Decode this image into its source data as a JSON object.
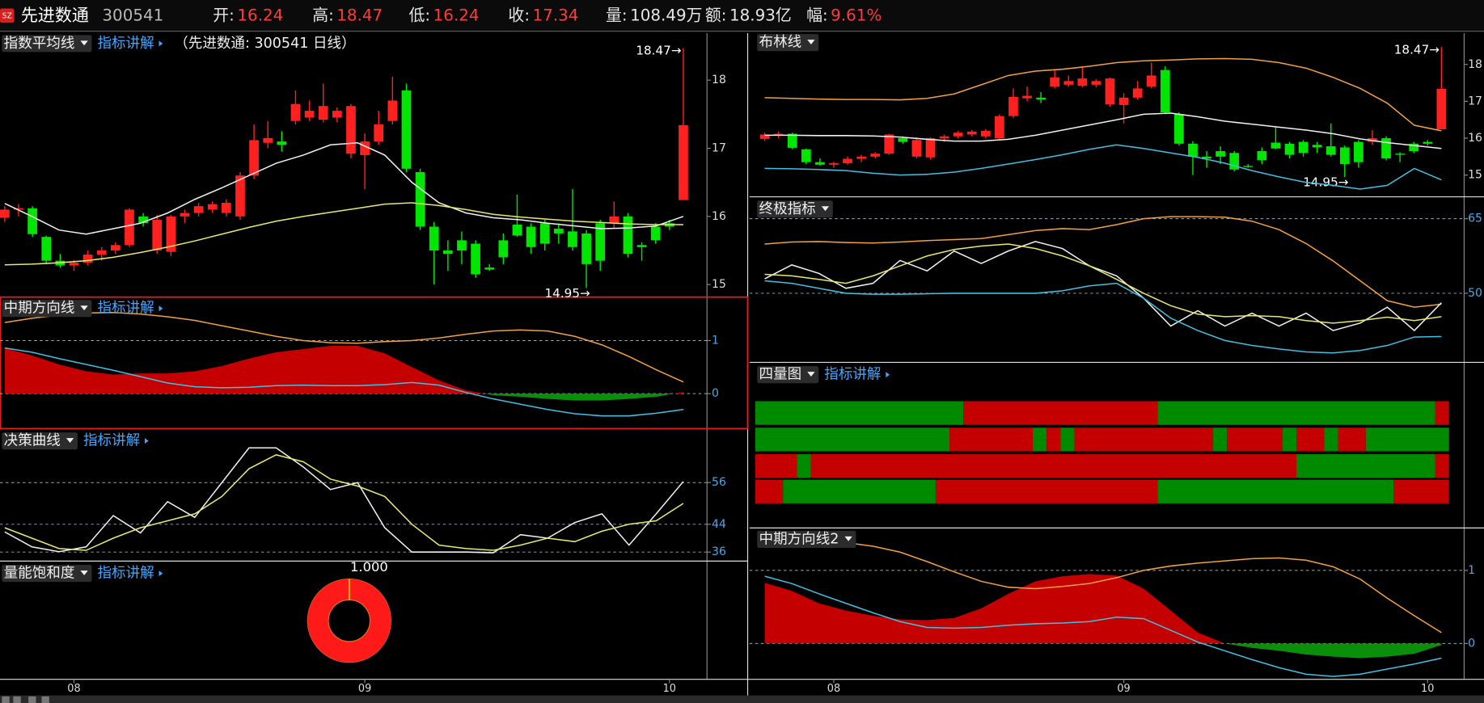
{
  "header": {
    "market": "SZ",
    "name": "先进数通",
    "code": "300541",
    "fields": [
      {
        "label": "开:",
        "value": "16.24",
        "color": "#ff3b3b"
      },
      {
        "label": "高:",
        "value": "18.47",
        "color": "#ff3b3b"
      },
      {
        "label": "低:",
        "value": "16.24",
        "color": "#ff3b3b"
      },
      {
        "label": "收:",
        "value": "17.34",
        "color": "#ff3b3b"
      },
      {
        "label": "量:",
        "value": "108.49万",
        "color": "#e6e6e6"
      },
      {
        "label": "额:",
        "value": "18.93亿",
        "color": "#e6e6e6"
      },
      {
        "label": "幅:",
        "value": "9.61%",
        "color": "#ff3b3b"
      }
    ]
  },
  "dates": [
    null,
    null,
    null,
    null,
    null,
    "08",
    null,
    null,
    null,
    null,
    null,
    null,
    null,
    null,
    null,
    null,
    null,
    null,
    null,
    null,
    null,
    null,
    null,
    null,
    null,
    null,
    "09",
    null,
    null,
    null,
    null,
    null,
    null,
    null,
    null,
    null,
    null,
    null,
    null,
    null,
    null,
    null,
    null,
    null,
    null,
    null,
    null,
    null,
    "10",
    null
  ],
  "candles": {
    "up_color": "#ff2020",
    "down_color": "#00e600",
    "open": [
      15.98,
      16.1,
      16.12,
      15.7,
      15.35,
      15.28,
      15.32,
      15.44,
      15.5,
      15.58,
      16.0,
      15.5,
      15.48,
      16.0,
      16.05,
      16.1,
      16.05,
      16.0,
      16.6,
      17.08,
      17.1,
      17.4,
      17.45,
      17.42,
      17.45,
      16.92,
      16.9,
      17.1,
      17.4,
      17.85,
      16.65,
      15.85,
      15.5,
      15.65,
      15.6,
      15.25,
      15.65,
      15.88,
      15.85,
      15.9,
      15.82,
      15.78,
      15.75,
      15.9,
      15.9,
      16.0,
      15.58,
      15.85,
      15.9,
      16.24
    ],
    "high": [
      16.15,
      16.18,
      16.15,
      15.72,
      15.45,
      15.36,
      15.5,
      15.55,
      15.62,
      16.12,
      16.05,
      16.02,
      16.02,
      16.1,
      16.2,
      16.22,
      16.25,
      16.65,
      17.35,
      17.4,
      17.25,
      17.85,
      17.7,
      17.95,
      17.6,
      17.65,
      17.22,
      17.55,
      18.05,
      17.95,
      16.7,
      15.92,
      15.65,
      15.78,
      15.65,
      15.3,
      15.75,
      16.32,
      15.9,
      15.95,
      15.9,
      16.4,
      15.8,
      15.95,
      16.22,
      16.05,
      15.62,
      15.9,
      15.95,
      18.47
    ],
    "low": [
      15.92,
      16.0,
      15.7,
      15.3,
      15.25,
      15.2,
      15.28,
      15.35,
      15.45,
      15.55,
      15.85,
      15.45,
      15.42,
      15.9,
      16.0,
      16.05,
      16.0,
      15.95,
      16.55,
      17.0,
      16.95,
      17.35,
      17.4,
      17.38,
      17.38,
      16.85,
      16.4,
      17.05,
      17.35,
      16.65,
      15.8,
      15.0,
      15.2,
      15.3,
      15.1,
      15.2,
      15.3,
      15.7,
      15.45,
      15.5,
      15.6,
      15.5,
      14.95,
      15.2,
      15.82,
      15.4,
      15.35,
      15.6,
      15.8,
      16.24
    ],
    "close": [
      16.1,
      16.12,
      15.74,
      15.35,
      15.28,
      15.32,
      15.44,
      15.5,
      15.58,
      16.1,
      15.9,
      15.95,
      16.0,
      16.05,
      16.15,
      16.18,
      16.2,
      16.6,
      17.12,
      17.15,
      17.05,
      17.65,
      17.55,
      17.62,
      17.55,
      17.62,
      17.1,
      17.35,
      17.7,
      16.7,
      15.85,
      15.5,
      15.45,
      15.5,
      15.15,
      15.22,
      15.4,
      15.72,
      15.55,
      15.6,
      15.75,
      15.55,
      15.3,
      15.35,
      16.0,
      15.45,
      15.55,
      15.65,
      15.85,
      17.34
    ]
  },
  "panels": {
    "ema": {
      "title": "指数平均线",
      "help": "指标讲解",
      "subtitle": "（先进数通: 300541 日线）",
      "ylim": [
        14.83,
        18.69
      ],
      "yticks": [
        15,
        16,
        17,
        18
      ],
      "grid": false,
      "candles": true,
      "high_label": "18.47→",
      "low_label": "14.95→",
      "series": [
        {
          "color": "#f0f0f0",
          "values": [
            16.19,
            16.0,
            15.8,
            15.74,
            15.82,
            15.9,
            16.05,
            16.25,
            16.42,
            16.6,
            16.78,
            16.9,
            17.05,
            17.08,
            16.9,
            16.5,
            16.2,
            16.05,
            15.98,
            15.95,
            15.9,
            15.86,
            15.82,
            15.83,
            15.86,
            16.0
          ]
        },
        {
          "color": "#e8e86a",
          "values": [
            15.29,
            15.3,
            15.32,
            15.35,
            15.4,
            15.47,
            15.55,
            15.64,
            15.74,
            15.84,
            15.93,
            16.0,
            16.06,
            16.12,
            16.18,
            16.2,
            16.16,
            16.1,
            16.03,
            15.99,
            15.96,
            15.93,
            15.91,
            15.89,
            15.88,
            15.88
          ]
        }
      ]
    },
    "mid": {
      "title": "中期方向线",
      "help": "指标讲解",
      "ylim": [
        -0.66,
        1.82
      ],
      "yticks": [
        0,
        1
      ],
      "grid": true,
      "area": {
        "up_color": "#c40000",
        "down_color": "#0a8f0a",
        "values": [
          0.86,
          0.72,
          0.55,
          0.42,
          0.36,
          0.38,
          0.38,
          0.42,
          0.52,
          0.66,
          0.78,
          0.84,
          0.9,
          0.9,
          0.76,
          0.5,
          0.25,
          0.06,
          -0.03,
          -0.06,
          -0.1,
          -0.13,
          -0.13,
          -0.1,
          -0.06,
          0.03
        ]
      },
      "series": [
        {
          "color": "#f0a040",
          "values": [
            1.34,
            1.42,
            1.48,
            1.52,
            1.53,
            1.5,
            1.45,
            1.38,
            1.28,
            1.18,
            1.08,
            1.0,
            0.96,
            0.95,
            0.98,
            1.0,
            1.05,
            1.12,
            1.18,
            1.2,
            1.18,
            1.08,
            0.92,
            0.7,
            0.45,
            0.22
          ]
        },
        {
          "color": "#40c0e0",
          "values": [
            0.86,
            0.78,
            0.66,
            0.55,
            0.44,
            0.32,
            0.2,
            0.13,
            0.11,
            0.12,
            0.15,
            0.16,
            0.15,
            0.15,
            0.17,
            0.21,
            0.16,
            0.02,
            -0.1,
            -0.2,
            -0.3,
            -0.38,
            -0.42,
            -0.42,
            -0.37,
            -0.3
          ]
        }
      ]
    },
    "decision": {
      "title": "决策曲线",
      "help": "指标讲解",
      "ylim": [
        33.4,
        71
      ],
      "yticks": [
        36,
        44,
        56
      ],
      "grid": true,
      "series": [
        {
          "color": "#f0f0f0",
          "values": [
            41.8,
            37.5,
            36.1,
            37.5,
            46.5,
            41.5,
            50.5,
            46,
            56,
            66,
            66,
            60.5,
            54,
            56,
            43,
            36,
            36,
            36,
            35.8,
            41,
            40,
            44.5,
            47,
            38,
            47,
            56.3
          ]
        },
        {
          "color": "#e8e86a",
          "values": [
            43,
            40,
            37,
            36.5,
            40,
            43,
            45,
            47,
            52,
            60,
            64,
            62,
            57,
            55,
            52,
            44,
            38,
            37,
            36.5,
            38,
            40,
            39,
            42,
            44,
            45,
            50
          ]
        }
      ]
    },
    "volume": {
      "title": "量能饱和度",
      "help": "指标讲解",
      "value": 1,
      "value_label": "1.000",
      "color": "#ff1a1a"
    },
    "boll": {
      "title": "布林线",
      "ylim": [
        14.41,
        18.85
      ],
      "yticks": [
        15,
        16,
        17,
        18
      ],
      "grid": false,
      "candles": true,
      "high_label": "18.47→",
      "low_label": "14.95→",
      "series": [
        {
          "color": "#f0a040",
          "values": [
            17.1,
            17.08,
            17.06,
            17.05,
            17.05,
            17.04,
            17.08,
            17.2,
            17.45,
            17.7,
            17.82,
            17.87,
            17.95,
            18.05,
            18.1,
            18.12,
            18.15,
            18.16,
            18.14,
            18.05,
            17.9,
            17.65,
            17.35,
            16.95,
            16.35,
            16.2
          ]
        },
        {
          "color": "#f0f0f0",
          "values": [
            16.08,
            16.08,
            16.07,
            16.07,
            16.06,
            16.03,
            15.97,
            15.92,
            15.92,
            15.97,
            16.08,
            16.22,
            16.36,
            16.5,
            16.65,
            16.68,
            16.58,
            16.46,
            16.38,
            16.3,
            16.22,
            16.12,
            15.98,
            15.88,
            15.8,
            15.72
          ]
        },
        {
          "color": "#40c0e0",
          "values": [
            15.18,
            15.17,
            15.15,
            15.12,
            15.05,
            15.0,
            15.02,
            15.08,
            15.18,
            15.3,
            15.42,
            15.55,
            15.7,
            15.82,
            15.72,
            15.6,
            15.48,
            15.32,
            15.12,
            14.95,
            14.8,
            14.72,
            14.62,
            14.72,
            15.18,
            14.87
          ]
        }
      ]
    },
    "ultimate": {
      "title": "终极指标",
      "ylim": [
        36.1,
        69.4
      ],
      "yticks": [
        50,
        65
      ],
      "grid": true,
      "series": [
        {
          "color": "#f0a040",
          "values": [
            59.9,
            60.3,
            60.4,
            60.2,
            60.1,
            60.3,
            60.6,
            60.8,
            61,
            61.8,
            62.6,
            63,
            62.8,
            63.8,
            65,
            65.4,
            65.4,
            65.3,
            64.5,
            62.8,
            60,
            56.5,
            52.5,
            48.5,
            47.2,
            47.8
          ]
        },
        {
          "color": "#f0f0f0",
          "values": [
            52.9,
            55.7,
            54,
            51,
            52,
            56.6,
            54.5,
            58.5,
            56,
            58.5,
            60.4,
            59,
            55.5,
            53.5,
            49,
            43.4,
            46.5,
            43.4,
            46,
            43.4,
            46,
            42.5,
            44,
            47.2,
            42.5,
            48.1
          ]
        },
        {
          "color": "#e8e86a",
          "values": [
            53.8,
            53.5,
            52.8,
            52,
            53.5,
            55.5,
            57.5,
            58.8,
            59.5,
            59.9,
            59,
            57.5,
            55.5,
            52.8,
            50,
            47.5,
            45.8,
            45.3,
            45.5,
            45.3,
            44.5,
            44,
            44.5,
            45.2,
            44.5,
            45.3
          ]
        },
        {
          "color": "#40c0e0",
          "values": [
            52.5,
            52,
            51,
            50,
            49.8,
            49.8,
            49.9,
            50,
            50,
            50,
            50,
            50.5,
            51.5,
            52,
            49,
            45,
            42.5,
            40.5,
            39.5,
            38.8,
            38.2,
            38,
            38.5,
            39.5,
            41.2,
            41.3
          ]
        }
      ]
    },
    "quad": {
      "title": "四量图",
      "help": "指标讲解",
      "up_color": "#c40000",
      "down_color": "#008a00",
      "rows": [
        [
          {
            "state": "down",
            "days": 15
          },
          {
            "state": "up",
            "days": 14
          },
          {
            "state": "down",
            "days": 20
          },
          {
            "state": "up",
            "days": 1
          }
        ],
        [
          {
            "state": "down",
            "days": 14
          },
          {
            "state": "up",
            "days": 6
          },
          {
            "state": "down",
            "days": 1
          },
          {
            "state": "up",
            "days": 1
          },
          {
            "state": "down",
            "days": 1
          },
          {
            "state": "up",
            "days": 10
          },
          {
            "state": "down",
            "days": 1
          },
          {
            "state": "up",
            "days": 4
          },
          {
            "state": "down",
            "days": 1
          },
          {
            "state": "up",
            "days": 2
          },
          {
            "state": "down",
            "days": 1
          },
          {
            "state": "up",
            "days": 2
          },
          {
            "state": "down",
            "days": 6
          }
        ],
        [
          {
            "state": "up",
            "days": 3
          },
          {
            "state": "down",
            "days": 1
          },
          {
            "state": "up",
            "days": 35
          },
          {
            "state": "down",
            "days": 10
          },
          {
            "state": "up",
            "days": 1
          }
        ],
        [
          {
            "state": "up",
            "days": 2
          },
          {
            "state": "down",
            "days": 11
          },
          {
            "state": "up",
            "days": 16
          },
          {
            "state": "down",
            "days": 17
          },
          {
            "state": "up",
            "days": 4
          }
        ]
      ]
    },
    "mid2": {
      "title": "中期方向线2",
      "ylim": [
        -0.49,
        1.58
      ],
      "yticks": [
        0,
        1
      ],
      "grid": true,
      "area": {
        "up_color": "#c40000",
        "down_color": "#0a8f0a",
        "values": [
          0.83,
          0.72,
          0.55,
          0.45,
          0.38,
          0.33,
          0.32,
          0.35,
          0.48,
          0.68,
          0.85,
          0.92,
          0.95,
          0.93,
          0.75,
          0.45,
          0.15,
          0.0,
          -0.06,
          -0.1,
          -0.15,
          -0.18,
          -0.2,
          -0.18,
          -0.14,
          -0.02
        ]
      },
      "series": [
        {
          "color": "#f0a040",
          "values": [
            1.35,
            1.38,
            1.4,
            1.38,
            1.33,
            1.25,
            1.12,
            0.98,
            0.85,
            0.77,
            0.75,
            0.78,
            0.82,
            0.9,
            1.0,
            1.06,
            1.1,
            1.13,
            1.16,
            1.17,
            1.14,
            1.05,
            0.88,
            0.62,
            0.38,
            0.15
          ]
        },
        {
          "color": "#40c0e0",
          "values": [
            0.92,
            0.82,
            0.68,
            0.55,
            0.42,
            0.3,
            0.22,
            0.21,
            0.22,
            0.25,
            0.27,
            0.28,
            0.3,
            0.36,
            0.34,
            0.18,
            0.02,
            -0.1,
            -0.22,
            -0.33,
            -0.42,
            -0.45,
            -0.42,
            -0.35,
            -0.28,
            -0.2
          ]
        }
      ]
    }
  }
}
